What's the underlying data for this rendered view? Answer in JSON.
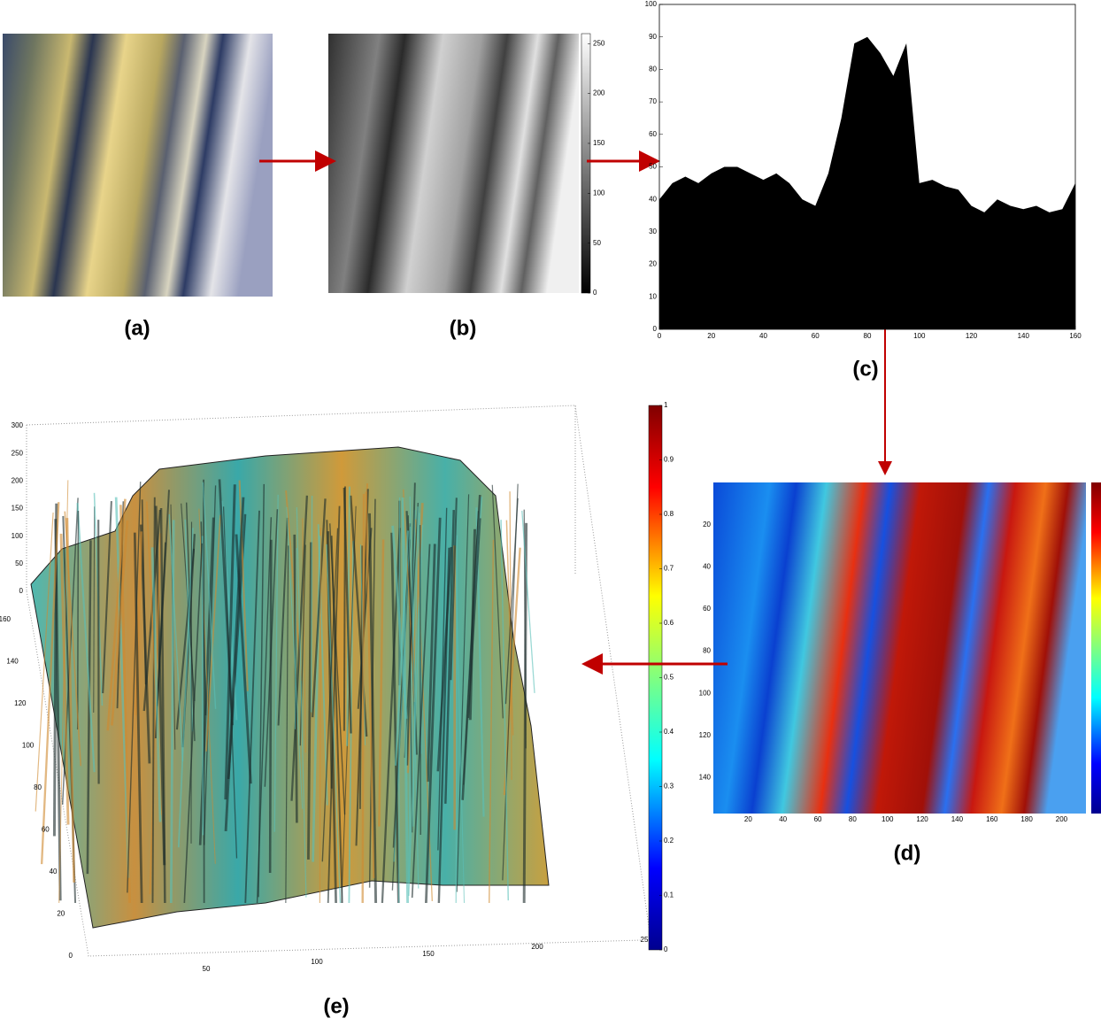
{
  "panels": {
    "a": {
      "label": "(a)"
    },
    "b": {
      "label": "(b)",
      "colorbar_ticks": [
        0,
        50,
        100,
        150,
        200,
        250
      ]
    },
    "c": {
      "label": "(c)",
      "chart_data": {
        "type": "area",
        "x": [
          0,
          5,
          10,
          15,
          20,
          25,
          30,
          35,
          40,
          45,
          50,
          55,
          60,
          65,
          70,
          75,
          80,
          85,
          90,
          95,
          100,
          105,
          110,
          115,
          120,
          125,
          130,
          135,
          140,
          145,
          150,
          155,
          160
        ],
        "values": [
          40,
          45,
          47,
          45,
          48,
          50,
          50,
          48,
          46,
          48,
          45,
          40,
          38,
          48,
          65,
          88,
          90,
          85,
          78,
          88,
          45,
          46,
          44,
          43,
          38,
          36,
          40,
          38,
          37,
          38,
          36,
          37,
          45
        ],
        "color": "#000000",
        "xlim": [
          0,
          160
        ],
        "ylim": [
          0,
          100
        ],
        "xticks": [
          0,
          20,
          40,
          60,
          80,
          100,
          120,
          140,
          160
        ],
        "yticks": [
          0,
          10,
          20,
          30,
          40,
          50,
          60,
          70,
          80,
          90,
          100
        ]
      }
    },
    "d": {
      "label": "(d)",
      "xticks": [
        20,
        40,
        60,
        80,
        100,
        120,
        140,
        160,
        180,
        200
      ],
      "yticks": [
        20,
        40,
        60,
        80,
        100,
        120,
        140
      ]
    },
    "e": {
      "label": "(e)",
      "zticks": [
        0,
        50,
        100,
        150,
        200,
        250,
        300
      ],
      "yticks": [
        0,
        20,
        40,
        60,
        80,
        100,
        120,
        140,
        160
      ],
      "xticks": [
        50,
        100,
        150,
        200,
        25
      ],
      "colorbar_ticks": [
        0,
        0.1,
        0.2,
        0.3,
        0.4,
        0.5,
        0.6,
        0.7,
        0.8,
        0.9,
        1
      ]
    }
  }
}
